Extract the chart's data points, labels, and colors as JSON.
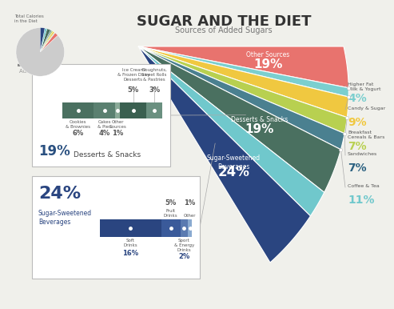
{
  "title": "SUGAR AND THE DIET",
  "subtitle": "Sources of Added Sugars",
  "bg_color": "#f0f0eb",
  "title_color": "#333333",
  "subtitle_color": "#777777",
  "pie_pct": 13,
  "pie_label": "Added Sugars",
  "pie_total_label": "Total Calories\nin the Diet",
  "funnel_segments": [
    {
      "label": "Other Sources",
      "pct": 19,
      "color": "#e8736e",
      "text_color": "#ffffff",
      "label_size": 6,
      "pct_size": 11
    },
    {
      "label": "",
      "pct": 4,
      "color": "#7bcfcf",
      "text_color": "#ffffff",
      "label_size": 5,
      "pct_size": 9
    },
    {
      "label": "",
      "pct": 9,
      "color": "#f0c840",
      "text_color": "#ffffff",
      "label_size": 5,
      "pct_size": 9
    },
    {
      "label": "",
      "pct": 7,
      "color": "#b8d050",
      "text_color": "#ffffff",
      "label_size": 5,
      "pct_size": 9
    },
    {
      "label": "",
      "pct": 7,
      "color": "#4a8090",
      "text_color": "#ffffff",
      "label_size": 5,
      "pct_size": 9
    },
    {
      "label": "Desserts & Snacks",
      "pct": 19,
      "color": "#4a7060",
      "text_color": "#ffffff",
      "label_size": 6,
      "pct_size": 11
    },
    {
      "label": "",
      "pct": 11,
      "color": "#70c8cc",
      "text_color": "#ffffff",
      "label_size": 5,
      "pct_size": 9
    },
    {
      "label": "Sugar-Sweetened\nBeverages",
      "pct": 24,
      "color": "#2a4580",
      "text_color": "#ffffff",
      "label_size": 6,
      "pct_size": 12
    }
  ],
  "right_labels": [
    {
      "label": "Higher Fat\nMilk & Yogurt",
      "pct": "4%",
      "pct_color": "#7bcfcf",
      "label_color": "#555555"
    },
    {
      "label": "Candy & Sugar",
      "pct": "9%",
      "pct_color": "#f0c840",
      "label_color": "#555555"
    },
    {
      "label": "Breakfast\nCereals & Bars",
      "pct": "7%",
      "pct_color": "#b8d050",
      "label_color": "#555555"
    },
    {
      "label": "Sandwiches",
      "pct": "7%",
      "pct_color": "#2a6080",
      "label_color": "#555555"
    },
    {
      "label": "Coffee & Tea",
      "pct": "11%",
      "pct_color": "#70c8cc",
      "label_color": "#555555"
    }
  ],
  "desserts_box": {
    "title_pct": "19%",
    "title_label": "Desserts & Snacks",
    "top_labels": [
      {
        "label": "Ice Cream\n& Frozen Dairy\nDesserts",
        "pct": "5%"
      },
      {
        "label": "Doughnuts,\nSweet Rolls\n& Pastries",
        "pct": "3%"
      }
    ],
    "bottom_labels": [
      {
        "label": "Cookies\n& Brownies",
        "pct": "6%"
      },
      {
        "label": "Cakes\n& Pies",
        "pct": "4%"
      },
      {
        "label": "Other\nSources",
        "pct": "1%"
      }
    ],
    "bar_props": [
      6,
      4,
      1,
      5,
      3
    ],
    "bar_colors": [
      "#4a7060",
      "#5a8070",
      "#8aaa98",
      "#3a6050",
      "#6a9080"
    ]
  },
  "beverages_box": {
    "title_pct": "24%",
    "title_label": "Sugar-Sweetened\nBeverages",
    "top_labels": [
      {
        "label": "Fruit\nDrinks",
        "pct": "5%"
      },
      {
        "label": "Other",
        "pct": "1%"
      }
    ],
    "bottom_labels": [
      {
        "label": "Soft\nDrinks",
        "pct": "16%"
      },
      {
        "label": "Sport\n& Energy\nDrinks",
        "pct": "2%"
      }
    ],
    "bar_props": [
      16,
      5,
      2,
      1
    ],
    "bar_colors": [
      "#2a4580",
      "#3a5a9a",
      "#5a7ab0",
      "#8aaad0"
    ]
  }
}
